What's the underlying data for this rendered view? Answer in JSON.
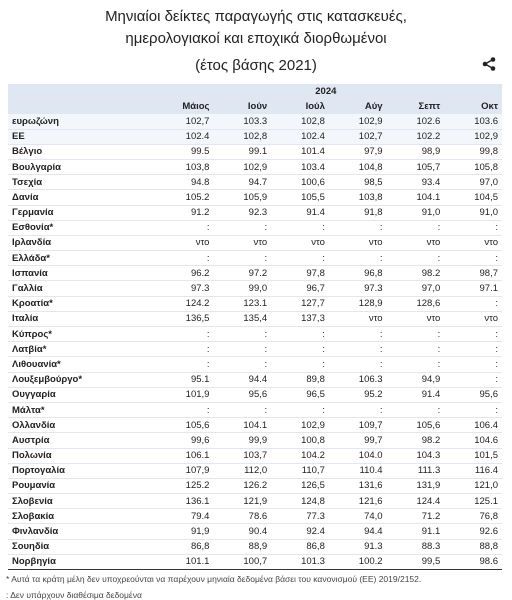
{
  "header": {
    "title_line1": "Μηνιαίοι δείκτες παραγωγής στις κατασκευές,",
    "title_line2": "ημερολογιακοί και εποχικά διορθωμένοι",
    "subtitle": "(έτος βάσης 2021)"
  },
  "table": {
    "year": "2024",
    "columns": [
      "Μάιος",
      "Ιούν",
      "Ιούλ",
      "Αύγ",
      "Σεπτ",
      "Οκτ"
    ],
    "rows": [
      [
        "ευρωζώνη",
        "102,7",
        "103.3",
        "102,8",
        "102,9",
        "102.6",
        "103.6"
      ],
      [
        "ΕΕ",
        "102.4",
        "102,8",
        "102.4",
        "102,7",
        "102.2",
        "102,9"
      ],
      [
        "Βέλγιο",
        "99.5",
        "99.1",
        "101.4",
        "97,9",
        "98,9",
        "99,8"
      ],
      [
        "Βουλγαρία",
        "103,8",
        "102,9",
        "103.4",
        "104,8",
        "105,7",
        "105,8"
      ],
      [
        "Τσεχία",
        "94.8",
        "94.7",
        "100,6",
        "98,5",
        "93.4",
        "97,0"
      ],
      [
        "Δανία",
        "105.2",
        "105,9",
        "105,5",
        "103,8",
        "104.1",
        "104,5"
      ],
      [
        "Γερμανία",
        "91.2",
        "92.3",
        "91.4",
        "91,8",
        "91,0",
        "91,0"
      ],
      [
        "Εσθονία*",
        ":",
        ":",
        ":",
        ":",
        ":",
        ":"
      ],
      [
        "Ιρλανδία",
        "ντο",
        "ντο",
        "ντο",
        "ντο",
        "ντο",
        "ντο"
      ],
      [
        "Ελλάδα*",
        ":",
        ":",
        ":",
        ":",
        ":",
        ":"
      ],
      [
        "Ισπανία",
        "96.2",
        "97.2",
        "97,8",
        "96,8",
        "98.2",
        "98,7"
      ],
      [
        "Γαλλία",
        "97.3",
        "99,0",
        "96,7",
        "97.3",
        "97,0",
        "97.1"
      ],
      [
        "Κροατία*",
        "124.2",
        "123.1",
        "127,7",
        "128,9",
        "128,6",
        ":"
      ],
      [
        "Ιταλία",
        "136,5",
        "135,4",
        "137,3",
        "ντο",
        "ντο",
        "ντο"
      ],
      [
        "Κύπρος*",
        ":",
        ":",
        ":",
        ":",
        ":",
        ":"
      ],
      [
        "Λατβία*",
        ":",
        ":",
        ":",
        ":",
        ":",
        ":"
      ],
      [
        "Λιθουανία*",
        ":",
        ":",
        ":",
        ":",
        ":",
        ":"
      ],
      [
        "Λουξεμβούργο*",
        "95.1",
        "94.4",
        "89,8",
        "106.3",
        "94,9",
        ":"
      ],
      [
        "Ουγγαρία",
        "101,9",
        "95,6",
        "96,5",
        "95.2",
        "91.4",
        "95,6"
      ],
      [
        "Μάλτα*",
        ":",
        ":",
        ":",
        ":",
        ":",
        ":"
      ],
      [
        "Ολλανδία",
        "105,6",
        "104.1",
        "102,9",
        "109,7",
        "105,6",
        "106.4"
      ],
      [
        "Αυστρία",
        "99,6",
        "99,9",
        "100,8",
        "99,7",
        "98.2",
        "104.6"
      ],
      [
        "Πολωνία",
        "106.1",
        "103,7",
        "104.2",
        "104.0",
        "104.3",
        "101,5"
      ],
      [
        "Πορτογαλία",
        "107,9",
        "112,0",
        "110,7",
        "110.4",
        "111.3",
        "116.4"
      ],
      [
        "Ρουμανία",
        "125.2",
        "126.2",
        "126,5",
        "131,6",
        "131,9",
        "121,0"
      ],
      [
        "Σλοβενία",
        "136.1",
        "121,9",
        "124,8",
        "121,6",
        "124.4",
        "125.1"
      ],
      [
        "Σλοβακία",
        "79.4",
        "78.6",
        "77.3",
        "74,0",
        "71.2",
        "76,8"
      ],
      [
        "Φινλανδία",
        "91,9",
        "90.4",
        "92.4",
        "94.4",
        "91.1",
        "92.6"
      ],
      [
        "Σουηδία",
        "86,8",
        "88,9",
        "86,8",
        "91.3",
        "88.3",
        "88,8"
      ],
      [
        "Νορβηγία",
        "101.1",
        "100,7",
        "101.3",
        "100.2",
        "99,5",
        "98.6"
      ]
    ]
  },
  "footnotes": [
    "* Αυτά τα κράτη μέλη δεν υποχρεούνται να παρέχουν μηνιαία δεδομένα βάσει του κανονισμού (ΕΕ) 2019/2152.",
    ": Δεν υπάρχουν διαθέσιμα δεδομένα"
  ]
}
